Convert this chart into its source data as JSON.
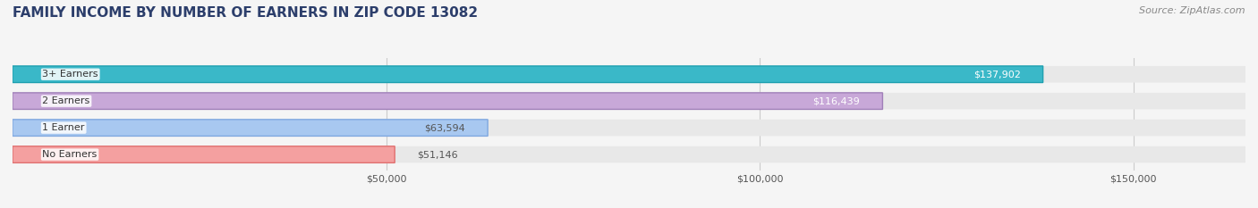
{
  "title": "FAMILY INCOME BY NUMBER OF EARNERS IN ZIP CODE 13082",
  "source": "Source: ZipAtlas.com",
  "categories": [
    "No Earners",
    "1 Earner",
    "2 Earners",
    "3+ Earners"
  ],
  "values": [
    51146,
    63594,
    116439,
    137902
  ],
  "labels": [
    "$51,146",
    "$63,594",
    "$116,439",
    "$137,902"
  ],
  "bar_colors": [
    "#f4a0a0",
    "#a8c8f0",
    "#c8a8d8",
    "#3ab8c8"
  ],
  "bar_edge_colors": [
    "#e07070",
    "#80a8e0",
    "#a080b8",
    "#20a0b0"
  ],
  "label_colors": [
    "#555555",
    "#555555",
    "#ffffff",
    "#ffffff"
  ],
  "xlim": [
    0,
    165000
  ],
  "xticks": [
    50000,
    100000,
    150000
  ],
  "xticklabels": [
    "$50,000",
    "$100,000",
    "$150,000"
  ],
  "bg_color": "#f5f5f5",
  "bar_bg_color": "#e8e8e8",
  "title_color": "#2c3e6b",
  "source_color": "#888888",
  "title_fontsize": 11,
  "source_fontsize": 8,
  "label_fontsize": 8,
  "category_fontsize": 8,
  "tick_fontsize": 8
}
